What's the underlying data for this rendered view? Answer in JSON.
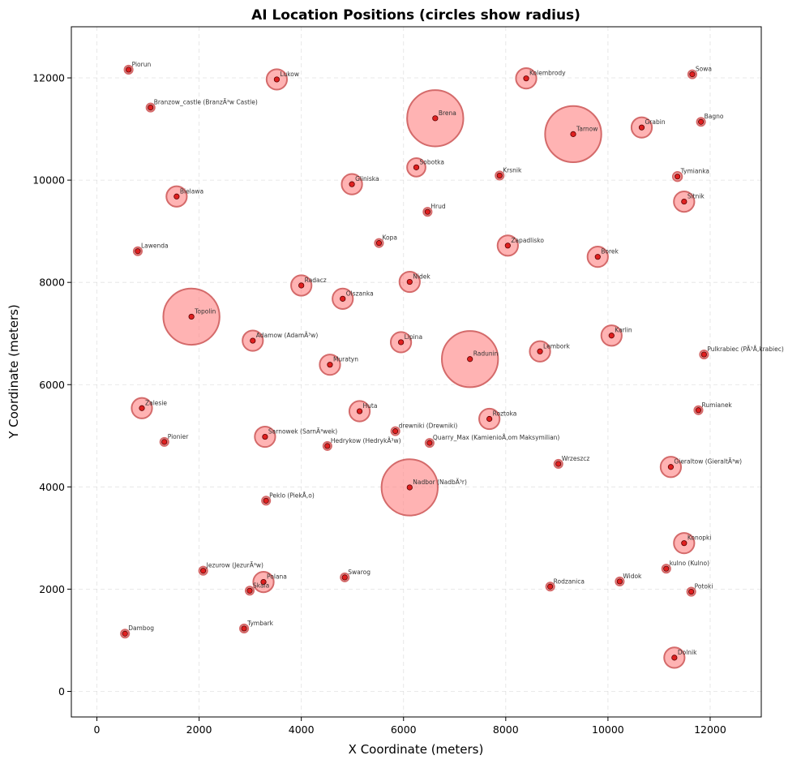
{
  "chart_data": {
    "type": "scatter",
    "title": "AI Location Positions (circles show radius)",
    "xlabel": "X Coordinate (meters)",
    "ylabel": "Y Coordinate (meters)",
    "xlim": [
      -500,
      13000
    ],
    "ylim": [
      -500,
      13000
    ],
    "xticks": [
      0,
      2000,
      4000,
      6000,
      8000,
      10000,
      12000
    ],
    "yticks": [
      0,
      2000,
      4000,
      6000,
      8000,
      10000,
      12000
    ],
    "grid": true,
    "colors": {
      "circle_fill": "#ff8080",
      "circle_edge": "#d46a6a",
      "point": "#e02020",
      "point_edge": "#5a0000"
    },
    "points": [
      {
        "label": "Piorun",
        "x": 620,
        "y": 12160,
        "r": 80
      },
      {
        "label": "Lukow",
        "x": 3520,
        "y": 11970,
        "r": 200
      },
      {
        "label": "Kolembrody",
        "x": 8400,
        "y": 11990,
        "r": 200
      },
      {
        "label": "Sowa",
        "x": 11650,
        "y": 12070,
        "r": 80
      },
      {
        "label": "Branzow_castle (BranzÃ³w Castle)",
        "x": 1050,
        "y": 11420,
        "r": 80
      },
      {
        "label": "Brena",
        "x": 6620,
        "y": 11210,
        "r": 550
      },
      {
        "label": "Tarnow",
        "x": 9320,
        "y": 10900,
        "r": 550
      },
      {
        "label": "Grabin",
        "x": 10660,
        "y": 11030,
        "r": 200
      },
      {
        "label": "Bagno",
        "x": 11820,
        "y": 11140,
        "r": 80
      },
      {
        "label": "Sobotka",
        "x": 6250,
        "y": 10250,
        "r": 180
      },
      {
        "label": "Krsnik",
        "x": 7880,
        "y": 10090,
        "r": 80
      },
      {
        "label": "Tymianka",
        "x": 11360,
        "y": 10070,
        "r": 90
      },
      {
        "label": "Gliniska",
        "x": 4990,
        "y": 9920,
        "r": 200
      },
      {
        "label": "Bielawa",
        "x": 1560,
        "y": 9680,
        "r": 200
      },
      {
        "label": "Sitnik",
        "x": 11490,
        "y": 9580,
        "r": 200
      },
      {
        "label": "Hrud",
        "x": 6470,
        "y": 9380,
        "r": 80
      },
      {
        "label": "Kopa",
        "x": 5520,
        "y": 8770,
        "r": 80
      },
      {
        "label": "Zapadlisko",
        "x": 8040,
        "y": 8720,
        "r": 200
      },
      {
        "label": "Lawenda",
        "x": 800,
        "y": 8610,
        "r": 80
      },
      {
        "label": "Borek",
        "x": 9800,
        "y": 8500,
        "r": 200
      },
      {
        "label": "Nidek",
        "x": 6120,
        "y": 8010,
        "r": 200
      },
      {
        "label": "Radacz",
        "x": 4000,
        "y": 7940,
        "r": 200
      },
      {
        "label": "Olszanka",
        "x": 4810,
        "y": 7680,
        "r": 200
      },
      {
        "label": "Topolin",
        "x": 1850,
        "y": 7330,
        "r": 550
      },
      {
        "label": "Adamow (AdamÃ³w)",
        "x": 3050,
        "y": 6860,
        "r": 200
      },
      {
        "label": "Lipina",
        "x": 5950,
        "y": 6830,
        "r": 200
      },
      {
        "label": "Karlin",
        "x": 10070,
        "y": 6960,
        "r": 200
      },
      {
        "label": "Radunin",
        "x": 7300,
        "y": 6500,
        "r": 550
      },
      {
        "label": "Lembork",
        "x": 8670,
        "y": 6650,
        "r": 200
      },
      {
        "label": "Pulkrabiec (PÃ³Å‚krabiec)",
        "x": 11880,
        "y": 6590,
        "r": 80
      },
      {
        "label": "Muratyn",
        "x": 4560,
        "y": 6390,
        "r": 200
      },
      {
        "label": "Zalesie",
        "x": 880,
        "y": 5540,
        "r": 200
      },
      {
        "label": "Huta",
        "x": 5140,
        "y": 5480,
        "r": 200
      },
      {
        "label": "Rumianek",
        "x": 11770,
        "y": 5500,
        "r": 80
      },
      {
        "label": "Roztoka",
        "x": 7680,
        "y": 5330,
        "r": 200
      },
      {
        "label": "drewniki (Drewniki)",
        "x": 5840,
        "y": 5090,
        "r": 80
      },
      {
        "label": "Sarnowek (SarnÃ³wek)",
        "x": 3290,
        "y": 4980,
        "r": 200
      },
      {
        "label": "Pionier",
        "x": 1320,
        "y": 4880,
        "r": 80
      },
      {
        "label": "Quarry_Max (KamienioÅ‚om Maksymilian)",
        "x": 6510,
        "y": 4860,
        "r": 80
      },
      {
        "label": "Hedrykow (HedrykÃ³w)",
        "x": 4510,
        "y": 4800,
        "r": 80
      },
      {
        "label": "Wrzeszcz",
        "x": 9030,
        "y": 4450,
        "r": 80
      },
      {
        "label": "Gieraltow (GieraltÃ³w)",
        "x": 11230,
        "y": 4390,
        "r": 200
      },
      {
        "label": "Nadbor (NadbÃ³r)",
        "x": 6120,
        "y": 3990,
        "r": 550
      },
      {
        "label": "Peklo (PiekÅ‚o)",
        "x": 3310,
        "y": 3730,
        "r": 80
      },
      {
        "label": "Konopki",
        "x": 11490,
        "y": 2900,
        "r": 200
      },
      {
        "label": "Jezurow (JezurÃ³w)",
        "x": 2080,
        "y": 2360,
        "r": 80
      },
      {
        "label": "kulno (Kulno)",
        "x": 11140,
        "y": 2400,
        "r": 80
      },
      {
        "label": "Swarog",
        "x": 4850,
        "y": 2230,
        "r": 80
      },
      {
        "label": "Polana",
        "x": 3260,
        "y": 2140,
        "r": 200
      },
      {
        "label": "Widok",
        "x": 10230,
        "y": 2150,
        "r": 80
      },
      {
        "label": "Rodzanica",
        "x": 8870,
        "y": 2050,
        "r": 80
      },
      {
        "label": "Skala",
        "x": 2990,
        "y": 1970,
        "r": 80
      },
      {
        "label": "Potoki",
        "x": 11630,
        "y": 1950,
        "r": 80
      },
      {
        "label": "Tymbark",
        "x": 2880,
        "y": 1230,
        "r": 80
      },
      {
        "label": "Dambog",
        "x": 550,
        "y": 1130,
        "r": 80
      },
      {
        "label": "Dolnik",
        "x": 11300,
        "y": 660,
        "r": 200
      }
    ]
  }
}
